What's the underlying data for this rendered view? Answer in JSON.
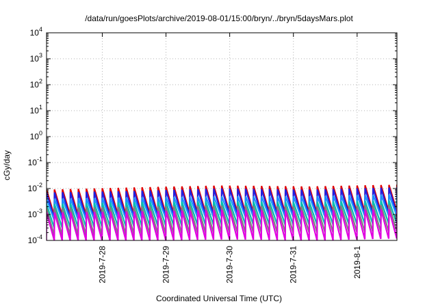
{
  "chart_data": {
    "type": "line",
    "title": "/data/run/goesPlots/archive/2019-08-01/15:00/bryn/../bryn/5daysMars.plot",
    "xlabel": "Coordinated Universal Time (UTC)",
    "ylabel": "cGy/day",
    "y_scale": "log",
    "ylim": [
      0.0001,
      10000
    ],
    "y_ticks": [
      {
        "base": "10",
        "exp": "-4",
        "value": 0.0001
      },
      {
        "base": "10",
        "exp": "-3",
        "value": 0.001
      },
      {
        "base": "10",
        "exp": "-2",
        "value": 0.01
      },
      {
        "base": "10",
        "exp": "-1",
        "value": 0.1
      },
      {
        "base": "10",
        "exp": "0",
        "value": 1
      },
      {
        "base": "10",
        "exp": "1",
        "value": 10
      },
      {
        "base": "10",
        "exp": "2",
        "value": 100
      },
      {
        "base": "10",
        "exp": "3",
        "value": 1000
      },
      {
        "base": "10",
        "exp": "4",
        "value": 10000
      }
    ],
    "xlim": [
      "2019-07-27 03:00",
      "2019-08-01 15:00"
    ],
    "x_ticks": [
      "2019-7-28",
      "2019-7-29",
      "2019-7-30",
      "2019-7-31",
      "2019-8-1"
    ],
    "grid": true,
    "legend": "none",
    "sawtooth_period_hours": 3,
    "series": [
      {
        "color": "#e00000",
        "peak": [
          0.009,
          0.011,
          0.013,
          0.012,
          0.014
        ],
        "trough": [
          0.0009,
          0.001,
          0.0012,
          0.0011,
          0.0014
        ]
      },
      {
        "color": "#2020e0",
        "peak": [
          0.007,
          0.008,
          0.01,
          0.009,
          0.011
        ],
        "trough": [
          0.0007,
          0.0008,
          0.001,
          0.0009,
          0.0011
        ]
      },
      {
        "color": "#1a90ff",
        "peak": [
          0.004,
          0.0045,
          0.005,
          0.005,
          0.006
        ],
        "trough": [
          0.0006,
          0.0007,
          0.0008,
          0.0008,
          0.0009
        ]
      },
      {
        "color": "#00c0b0",
        "peak": [
          0.0025,
          0.003,
          0.0032,
          0.003,
          0.0035
        ],
        "trough": [
          0.0003,
          0.00035,
          0.0004,
          0.0004,
          0.00045
        ]
      },
      {
        "color": "#808080",
        "peak": [
          0.0018,
          0.002,
          0.0022,
          0.002,
          0.0024
        ],
        "trough": [
          0.00015,
          0.00017,
          0.0002,
          0.0002,
          0.00022
        ]
      },
      {
        "color": "#e000e0",
        "peak": [
          0.0012,
          0.0013,
          0.0015,
          0.0014,
          0.0016
        ],
        "trough": [
          0.0001,
          0.0001,
          0.00011,
          0.0001,
          0.00012
        ]
      }
    ]
  }
}
